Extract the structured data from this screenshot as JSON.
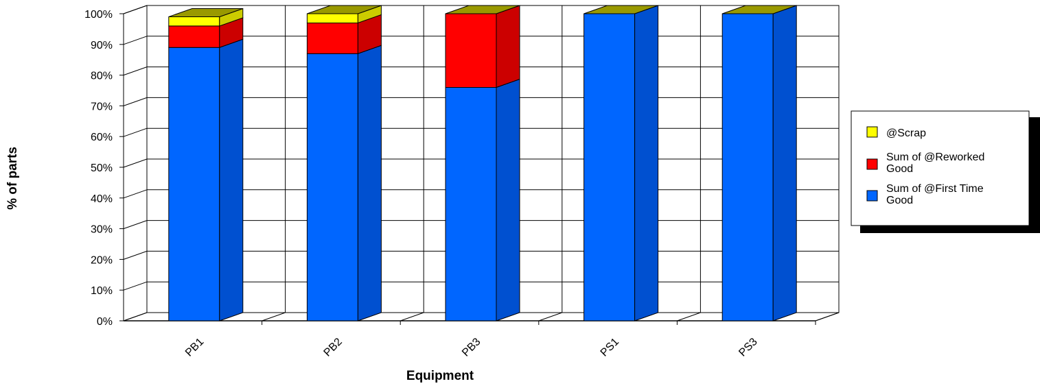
{
  "chart_data": {
    "type": "bar",
    "stacked": true,
    "percent_stacked": true,
    "three_d": true,
    "xlabel": "Equipment",
    "ylabel": "% of parts",
    "categories": [
      "PB1",
      "PB2",
      "PB3",
      "PS1",
      "PS3"
    ],
    "ylim": [
      0,
      100
    ],
    "yticks": [
      "0%",
      "10%",
      "20%",
      "30%",
      "40%",
      "50%",
      "60%",
      "70%",
      "80%",
      "90%",
      "100%"
    ],
    "grid": true,
    "legend_position": "right",
    "series": [
      {
        "name": "Sum of @First Time Good",
        "values": [
          89,
          87,
          76,
          100,
          100
        ],
        "color": "#0066ff",
        "side_color": "#0050d0",
        "top_color": "#0050d0"
      },
      {
        "name": "Sum of @Reworked Good",
        "values": [
          7,
          10,
          24,
          0,
          0
        ],
        "color": "#ff0000",
        "side_color": "#cc0000",
        "top_color": "#cc0000"
      },
      {
        "name": "@Scrap",
        "values": [
          3,
          3,
          0,
          0,
          0
        ],
        "color": "#ffff00",
        "side_color": "#cccc00",
        "top_color": "#999900"
      }
    ],
    "legend_order": [
      "@Scrap",
      "Sum of @Reworked Good",
      "Sum of @First Time Good"
    ]
  }
}
